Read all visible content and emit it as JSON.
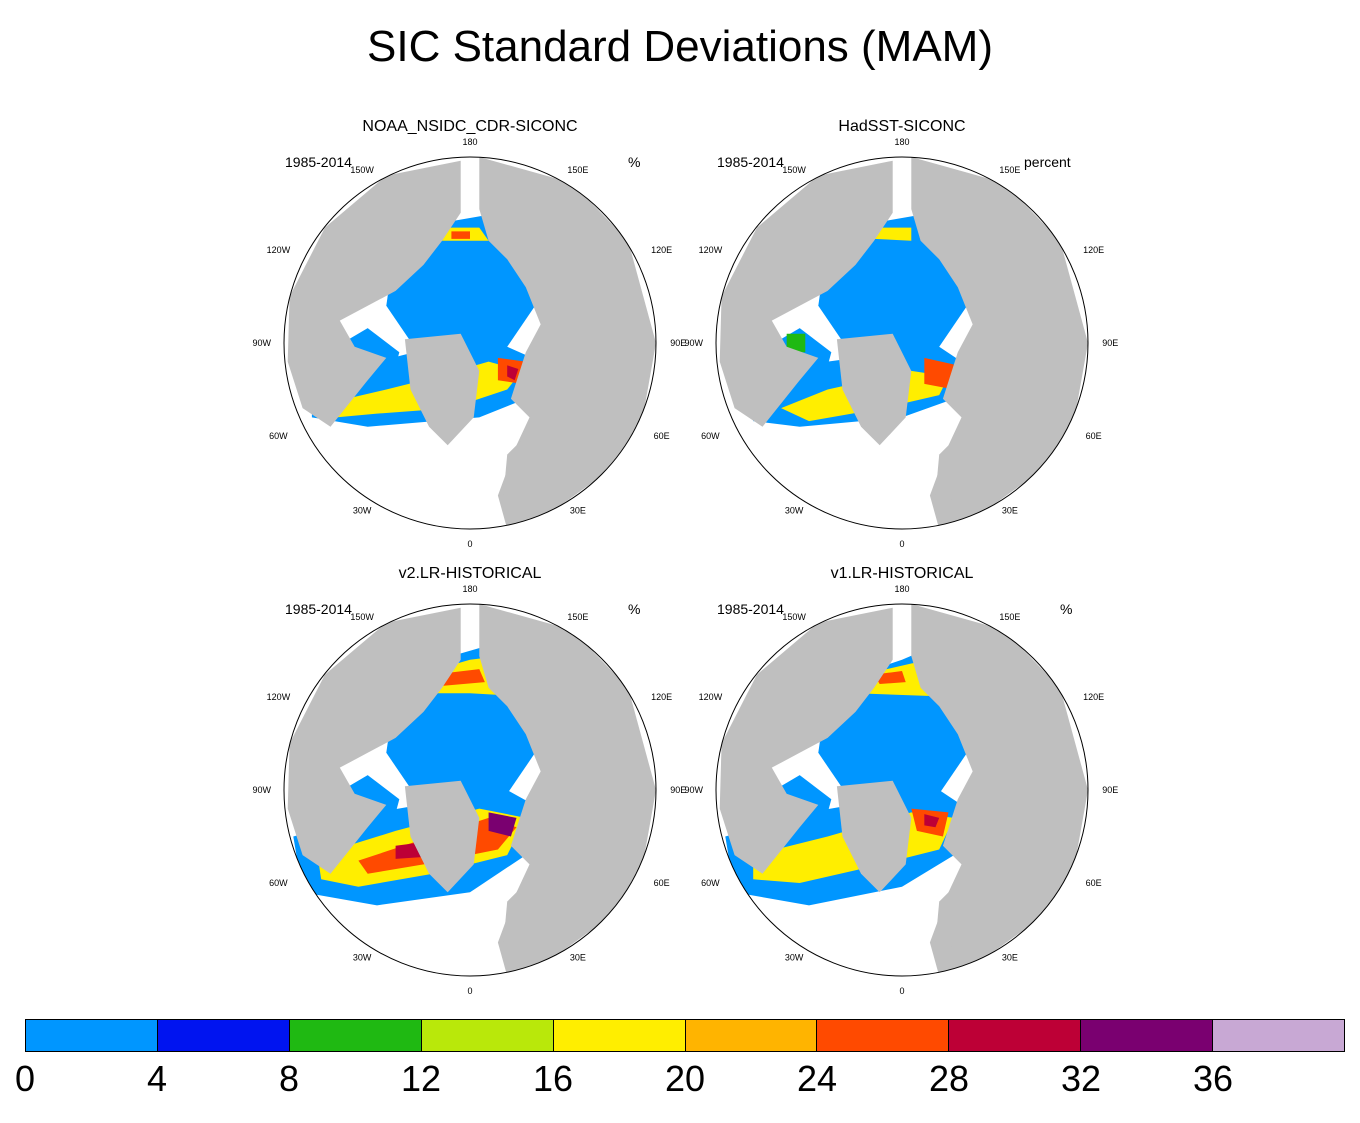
{
  "title": "SIC Standard Deviations (MAM)",
  "colors": {
    "land": "#bfbfbf",
    "open_water": "#ffffff",
    "levels": [
      "#0096ff",
      "#0014f0",
      "#1fb912",
      "#b9e80a",
      "#ffee00",
      "#ffb400",
      "#ff4a00",
      "#bd0036",
      "#7a0070",
      "#c8a8d4"
    ]
  },
  "colorbar": {
    "ticks": [
      "0",
      "4",
      "8",
      "12",
      "16",
      "20",
      "24",
      "28",
      "32",
      "36"
    ]
  },
  "longitude_labels": {
    "top": "180",
    "bottom": "0",
    "upper_left": "150W",
    "upper_right": "150E",
    "left_upper": "120W",
    "right_upper": "120E",
    "left_mid": "90W",
    "right_mid": "90E",
    "left_lower": "60W",
    "right_lower": "60E",
    "lower_left": "30W",
    "lower_right": "30E"
  },
  "panels": [
    {
      "title": "NOAA_NSIDC_CDR-SICONC",
      "period": "1985-2014",
      "units": "%"
    },
    {
      "title": "HadSST-SICONC",
      "period": "1985-2014",
      "units": "percent"
    },
    {
      "title": "v2.LR-HISTORICAL",
      "period": "1985-2014",
      "units": "%"
    },
    {
      "title": "v1.LR-HISTORICAL",
      "period": "1985-2014",
      "units": "%"
    }
  ]
}
